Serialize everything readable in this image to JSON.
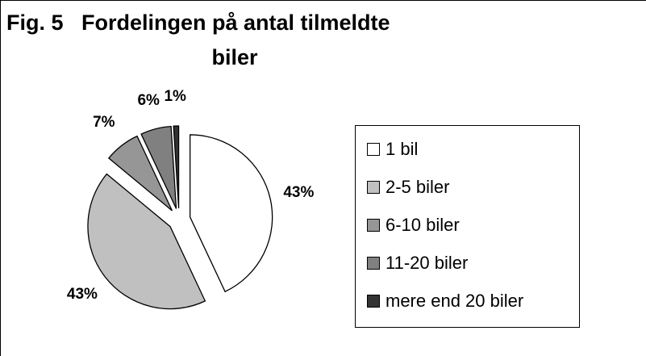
{
  "chart_data": {
    "type": "pie",
    "title": [
      "Fig. 5   Fordelingen på antal tilmeldte",
      "biler"
    ],
    "categories": [
      "1 bil",
      "2-5 biler",
      "6-10 biler",
      "11-20 biler",
      "mere end 20 biler"
    ],
    "values": [
      43,
      43,
      7,
      6,
      1
    ],
    "value_labels": [
      "43%",
      "43%",
      "7%",
      "6%",
      "1%"
    ],
    "colors": [
      "#ffffff",
      "#c0c0c0",
      "#969696",
      "#808080",
      "#333333"
    ],
    "exploded": true,
    "legend": "right"
  }
}
